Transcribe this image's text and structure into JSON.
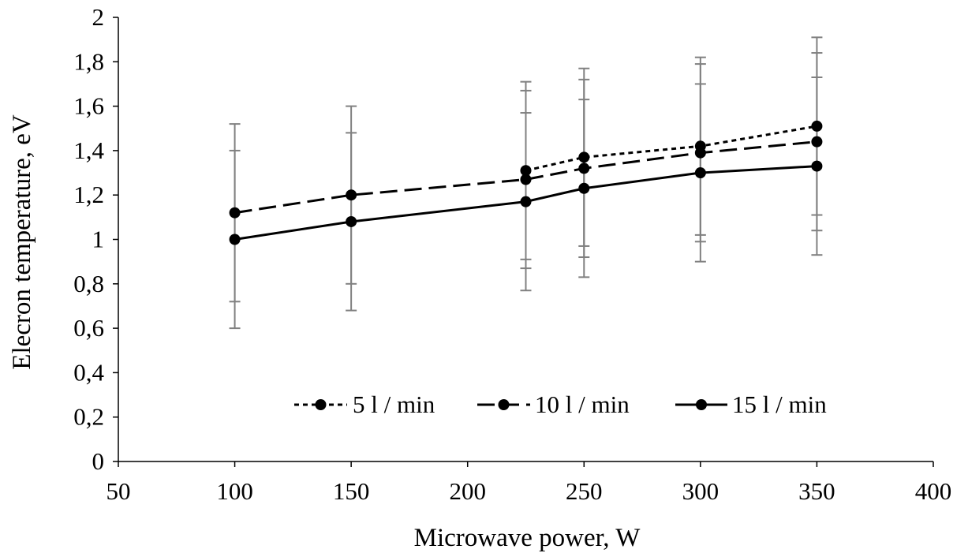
{
  "chart_data": {
    "type": "line",
    "title": "",
    "xlabel": "Microwave power, W",
    "ylabel": "Elecron temperature, eV",
    "xlim": [
      50,
      400
    ],
    "ylim": [
      0,
      2
    ],
    "x_ticks": [
      "50",
      "100",
      "150",
      "200",
      "250",
      "300",
      "350",
      "400"
    ],
    "y_ticks": [
      "0",
      "0,2",
      "0,4",
      "0,6",
      "0,8",
      "1",
      "1,2",
      "1,4",
      "1,6",
      "1,8",
      "2"
    ],
    "grid": false,
    "legend_position": "bottom-center-inside",
    "series": [
      {
        "name": "5 l / min",
        "style": "dotted",
        "x": [
          225,
          250,
          300,
          350
        ],
        "y": [
          1.31,
          1.37,
          1.42,
          1.51
        ],
        "err": [
          0.4,
          0.4,
          0.4,
          0.4
        ]
      },
      {
        "name": "10 l / min",
        "style": "dashed",
        "x": [
          100,
          150,
          225,
          250,
          300,
          350
        ],
        "y": [
          1.12,
          1.2,
          1.27,
          1.32,
          1.39,
          1.44
        ],
        "err": [
          0.4,
          0.4,
          0.4,
          0.4,
          0.4,
          0.4
        ]
      },
      {
        "name": "15 l / min",
        "style": "solid",
        "x": [
          100,
          150,
          225,
          250,
          300,
          350
        ],
        "y": [
          1.0,
          1.08,
          1.17,
          1.23,
          1.3,
          1.33
        ],
        "err": [
          0.4,
          0.4,
          0.4,
          0.4,
          0.4,
          0.4
        ]
      }
    ],
    "colors": {
      "line": "#000000",
      "error_bar": "#808080",
      "axis": "#000000"
    }
  }
}
